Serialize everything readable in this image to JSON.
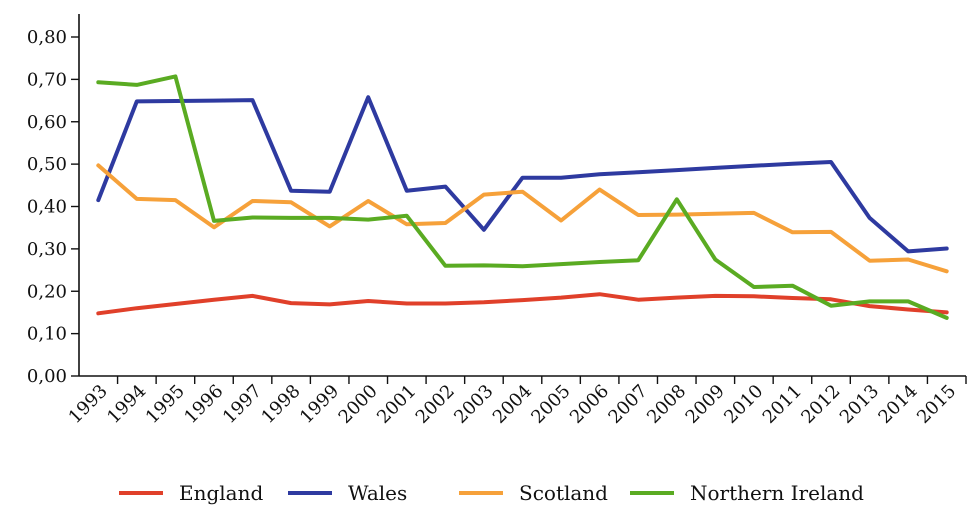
{
  "chart_data": {
    "type": "line",
    "x": [
      "1993",
      "1994",
      "1995",
      "1996",
      "1997",
      "1998",
      "1999",
      "2000",
      "2001",
      "2002",
      "2003",
      "2004",
      "2005",
      "2006",
      "2007",
      "2008",
      "2009",
      "2010",
      "2011",
      "2012",
      "2013",
      "2014",
      "2015"
    ],
    "ylim": [
      0,
      0.8
    ],
    "yticks": [
      "0,00",
      "0,10",
      "0,20",
      "0,30",
      "0,40",
      "0,50",
      "0,60",
      "0,70",
      "0,80"
    ],
    "grid": false,
    "legend_position": "bottom",
    "series": [
      {
        "name": "England",
        "color": "#e0402a",
        "values": [
          0.148,
          0.16,
          0.17,
          0.18,
          0.189,
          0.172,
          0.169,
          0.177,
          0.171,
          0.171,
          0.174,
          0.179,
          0.185,
          0.193,
          0.18,
          0.185,
          0.189,
          0.188,
          0.184,
          0.181,
          0.165,
          0.157,
          0.15
        ]
      },
      {
        "name": "Wales",
        "color": "#2e3aa0",
        "values": [
          0.415,
          0.648,
          0.649,
          0.65,
          0.651,
          0.437,
          0.435,
          0.658,
          0.437,
          0.447,
          0.345,
          0.468,
          0.468,
          0.476,
          0.481,
          0.486,
          0.491,
          0.496,
          0.501,
          0.505,
          0.373,
          0.294,
          0.301
        ]
      },
      {
        "name": "Scotland",
        "color": "#f6a13a",
        "values": [
          0.497,
          0.418,
          0.415,
          0.351,
          0.413,
          0.41,
          0.353,
          0.413,
          0.358,
          0.361,
          0.428,
          0.435,
          0.367,
          0.44,
          0.38,
          0.381,
          0.383,
          0.385,
          0.339,
          0.34,
          0.272,
          0.275,
          0.247
        ]
      },
      {
        "name": "Northern Ireland",
        "color": "#5aab22",
        "values": [
          0.693,
          0.687,
          0.707,
          0.366,
          0.374,
          0.373,
          0.373,
          0.369,
          0.378,
          0.26,
          0.261,
          0.259,
          0.264,
          0.269,
          0.273,
          0.417,
          0.275,
          0.21,
          0.213,
          0.166,
          0.176,
          0.176,
          0.137
        ]
      }
    ]
  }
}
